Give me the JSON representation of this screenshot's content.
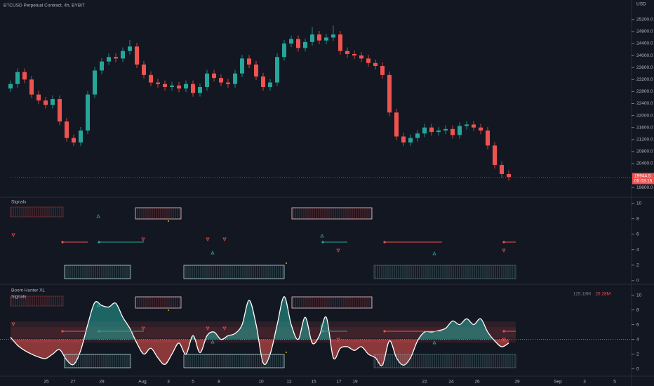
{
  "chart_data": [
    {
      "type": "candlestick",
      "title": "BTCUSD Perpetual Contract, 4h, BYBIT",
      "currency": "USD",
      "open": [
        22900,
        23050,
        23450,
        23200,
        22700,
        22500,
        22350,
        22550,
        21800,
        21250,
        21100,
        21500,
        22700,
        23500,
        23800,
        23950,
        23900,
        24150,
        24300,
        23700,
        23350,
        23100,
        23050,
        22950,
        23000,
        22900,
        23050,
        22750,
        22950,
        23400,
        23250,
        23100,
        23050,
        23400,
        23900,
        23700,
        23300,
        22950,
        23100,
        23950,
        24400,
        24550,
        24250,
        24450,
        24700,
        24500,
        24600,
        24700,
        24150,
        24050,
        24000,
        23900,
        23750,
        23650,
        23350,
        22100,
        21300,
        21100,
        21250,
        21400,
        21600,
        21450,
        21500,
        21550,
        21350,
        21650,
        21700,
        21600,
        21500,
        21000,
        20350,
        20050
      ],
      "high": [
        23170,
        23570,
        23570,
        23320,
        22820,
        22620,
        22670,
        22670,
        21920,
        21370,
        21620,
        22820,
        23620,
        23920,
        24070,
        24070,
        24270,
        24520,
        24420,
        23820,
        23470,
        23220,
        23170,
        23120,
        23120,
        23170,
        23170,
        23070,
        23520,
        23520,
        23370,
        23220,
        23520,
        24020,
        24020,
        23820,
        23420,
        23220,
        24070,
        24520,
        24670,
        24670,
        24570,
        24950,
        24820,
        24720,
        25000,
        24820,
        24270,
        24170,
        24120,
        24020,
        23870,
        23770,
        23470,
        22220,
        21420,
        21370,
        21520,
        21720,
        21720,
        21620,
        21670,
        21670,
        21770,
        21820,
        21820,
        21720,
        21620,
        21120,
        20470,
        20170
      ],
      "low": [
        22780,
        22930,
        23080,
        22580,
        22380,
        22230,
        22230,
        21680,
        21130,
        20980,
        20980,
        21380,
        22580,
        23380,
        23680,
        23780,
        23780,
        24030,
        23580,
        23230,
        22980,
        22930,
        22830,
        22830,
        22780,
        22780,
        22630,
        22630,
        22830,
        23130,
        22980,
        22930,
        22930,
        23280,
        23580,
        23180,
        22830,
        22830,
        22980,
        23830,
        24280,
        24130,
        24130,
        24330,
        24380,
        24380,
        24480,
        24030,
        23930,
        23880,
        23780,
        23630,
        23530,
        23230,
        21980,
        21180,
        20980,
        20980,
        21130,
        21280,
        21330,
        21330,
        21380,
        21230,
        21230,
        21530,
        21480,
        21380,
        20880,
        20230,
        19930,
        19830
      ],
      "close": [
        23050,
        23450,
        23200,
        22700,
        22500,
        22350,
        22550,
        21800,
        21250,
        21100,
        21500,
        22700,
        23500,
        23800,
        23950,
        23900,
        24150,
        24300,
        23700,
        23350,
        23100,
        23050,
        22950,
        23000,
        22900,
        23050,
        22750,
        22950,
        23400,
        23250,
        23100,
        23050,
        23400,
        23900,
        23700,
        23300,
        22950,
        23100,
        23950,
        24400,
        24550,
        24250,
        24450,
        24700,
        24500,
        24600,
        24700,
        24150,
        24050,
        24000,
        23900,
        23750,
        23650,
        23350,
        22100,
        21300,
        21100,
        21250,
        21400,
        21600,
        21450,
        21500,
        21550,
        21350,
        21650,
        21700,
        21600,
        21500,
        21000,
        20350,
        20050,
        19950
      ],
      "up_color": "#26a69a",
      "down_color": "#ef5350",
      "ylim": [
        19300,
        25850
      ],
      "yticks": [
        {
          "value": 19600,
          "label": "19600.0"
        },
        {
          "value": 20400,
          "label": "20400.0"
        },
        {
          "value": 20800,
          "label": "20800.0"
        },
        {
          "value": 21200,
          "label": "21200.0"
        },
        {
          "value": 21600,
          "label": "21600.0"
        },
        {
          "value": 22000,
          "label": "22000.0"
        },
        {
          "value": 22400,
          "label": "22400.0"
        },
        {
          "value": 22800,
          "label": "22800.0"
        },
        {
          "value": 23200,
          "label": "23200.0"
        },
        {
          "value": 23600,
          "label": "23600.0"
        },
        {
          "value": 24000,
          "label": "24000.0"
        },
        {
          "value": 24400,
          "label": "24400.0"
        },
        {
          "value": 24800,
          "label": "24800.0"
        },
        {
          "value": 25200,
          "label": "25200.0"
        }
      ],
      "last_price": 19944.5,
      "countdown": "05:03:16",
      "x_labels": [
        "25",
        "27",
        "29",
        "Aug",
        "3",
        "5",
        "8",
        "10",
        "12",
        "15",
        "17",
        "19",
        "22",
        "24",
        "26",
        "29",
        "Sep",
        "3",
        "5"
      ]
    },
    {
      "type": "signals",
      "title": "Signals",
      "ylim": [
        -0.2,
        10.6
      ],
      "yticks": [
        0,
        2,
        4,
        6,
        8,
        10
      ]
    },
    {
      "type": "line",
      "title": "Boom Hunter XL",
      "subtitle": "Signals",
      "color": "#ffffff",
      "above_color": "#26a69a",
      "below_color": "#ef5350",
      "values": [
        4.3,
        3.2,
        2.5,
        2,
        1.6,
        1.4,
        2,
        2.6,
        1.2,
        0.6,
        2.5,
        6,
        9,
        8.6,
        8.4,
        8.9,
        7,
        5.5,
        3.5,
        2,
        2.8,
        1.5,
        0.6,
        2,
        3.5,
        2,
        4.5,
        2.2,
        4.5,
        5,
        4,
        4.5,
        4.8,
        6,
        9.3,
        6,
        0.8,
        2,
        6,
        9.8,
        6,
        4,
        7,
        3.5,
        4.5,
        7,
        1.5,
        2.8,
        3,
        2.5,
        3,
        2,
        1.5,
        0.5,
        3.8,
        1.5,
        0.5,
        1.5,
        3.8,
        5,
        5,
        5.2,
        5.5,
        6.5,
        6,
        6.8,
        6,
        6.8,
        5,
        3.8,
        3,
        3.5
      ],
      "hline": 4,
      "volume_labels": [
        "125.18M",
        "20.28M"
      ],
      "ylim": [
        -0.9,
        11.2
      ],
      "yticks": [
        0,
        2,
        4,
        6,
        8,
        10
      ]
    }
  ]
}
